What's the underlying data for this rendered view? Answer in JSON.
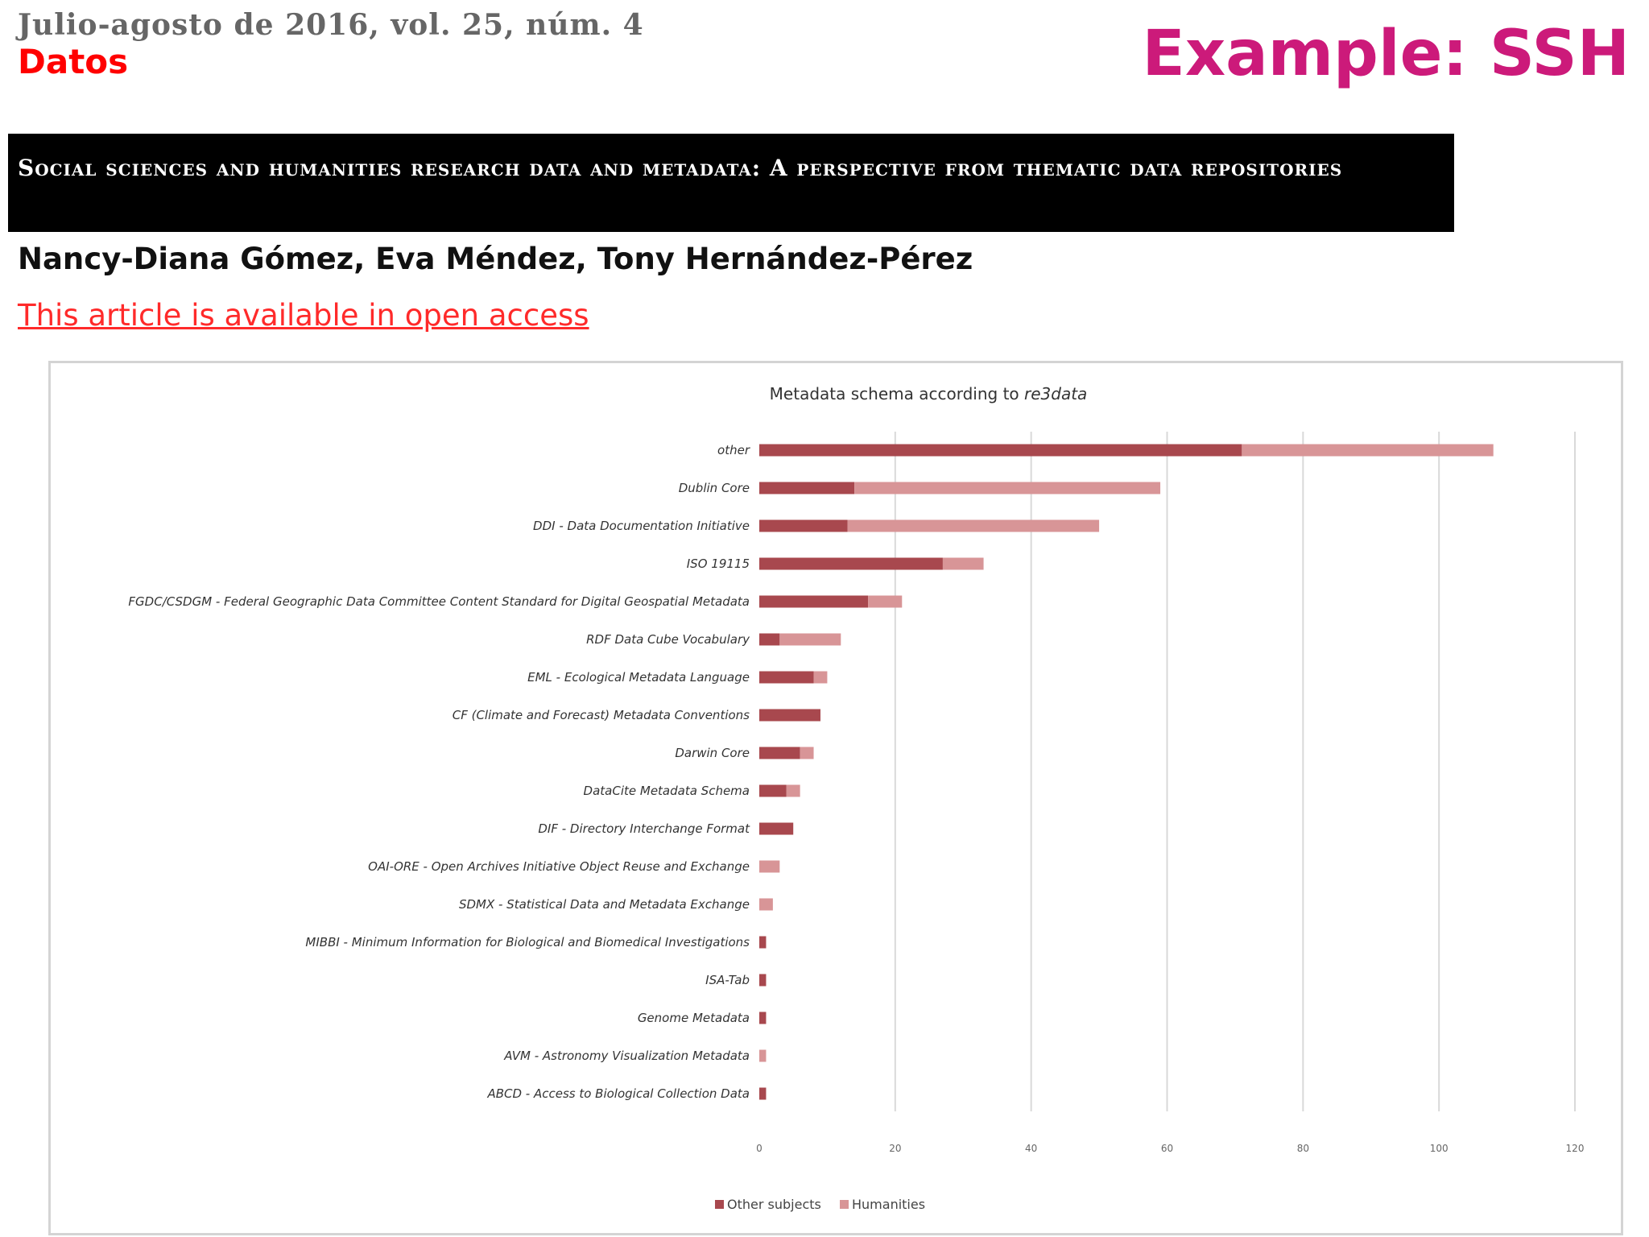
{
  "header": {
    "issue": "Julio-agosto de 2016, vol. 25, núm. 4",
    "section": "Datos",
    "example_label": "Example: SSH"
  },
  "article": {
    "title": "Social sciences and humanities research data and metadata: A perspective from thematic data repositories",
    "authors": "Nancy-Diana Gómez, Eva Méndez, Tony Hernández-Pérez",
    "open_access_link": "This article is available in open access"
  },
  "colors": {
    "title_band": "#000000",
    "section_red": "#ff0000",
    "example_magenta": "#cc1a7a",
    "link_red": "#ff2a2a"
  },
  "chart_data": {
    "type": "bar",
    "orientation": "horizontal",
    "stacked": true,
    "title_prefix": "Metadata schema according to ",
    "title_italic": "re3data",
    "categories": [
      "other",
      "Dublin Core",
      "DDI - Data Documentation Initiative",
      "ISO 19115",
      "FGDC/CSDGM - Federal Geographic Data Committee Content Standard for Digital Geospatial Metadata",
      "RDF Data Cube Vocabulary",
      "EML - Ecological Metadata Language",
      "CF (Climate and Forecast) Metadata Conventions",
      "Darwin Core",
      "DataCite Metadata Schema",
      "DIF - Directory Interchange Format",
      "OAI-ORE - Open Archives Initiative Object Reuse and Exchange",
      "SDMX - Statistical Data and Metadata Exchange",
      "MIBBI - Minimum Information for Biological and Biomedical Investigations",
      "ISA-Tab",
      "Genome Metadata",
      "AVM - Astronomy Visualization Metadata",
      "ABCD - Access to Biological Collection Data"
    ],
    "series": [
      {
        "name": "Other subjects",
        "color": "#a8484e",
        "values": [
          71,
          14,
          13,
          27,
          16,
          3,
          8,
          9,
          6,
          4,
          5,
          0,
          0,
          1,
          1,
          1,
          0,
          1
        ]
      },
      {
        "name": "Humanities",
        "color": "#d89597",
        "values": [
          37,
          45,
          37,
          6,
          5,
          9,
          2,
          0,
          2,
          2,
          0,
          3,
          2,
          0,
          0,
          0,
          1,
          0
        ]
      }
    ],
    "xlim": [
      0,
      120
    ],
    "xticks": [
      "0",
      "20",
      "40",
      "60",
      "80",
      "100",
      "120"
    ],
    "grid": true,
    "legend_position": "bottom"
  }
}
